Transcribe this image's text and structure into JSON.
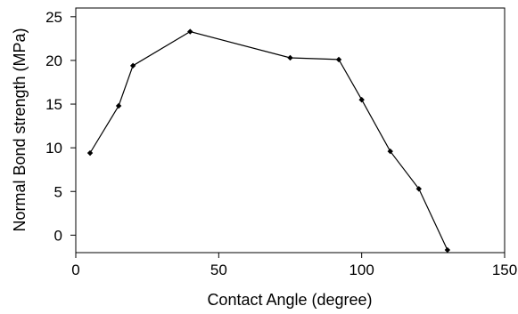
{
  "chart_data": {
    "type": "line",
    "title": "",
    "xlabel": "Contact Angle (degree)",
    "ylabel": "Normal Bond strength (MPa)",
    "xlim": [
      0,
      150
    ],
    "ylim": [
      -2,
      26
    ],
    "xticks": [
      0,
      50,
      100,
      150
    ],
    "yticks": [
      0,
      5,
      10,
      15,
      20,
      25
    ],
    "grid": false,
    "legend": "none",
    "series": [
      {
        "color": "#000000",
        "marker": "diamond",
        "x": [
          5,
          15,
          20,
          40,
          75,
          92,
          100,
          110,
          120,
          130
        ],
        "y": [
          9.4,
          14.8,
          19.4,
          23.3,
          20.3,
          20.1,
          15.5,
          9.6,
          5.3,
          -1.7
        ]
      }
    ]
  }
}
